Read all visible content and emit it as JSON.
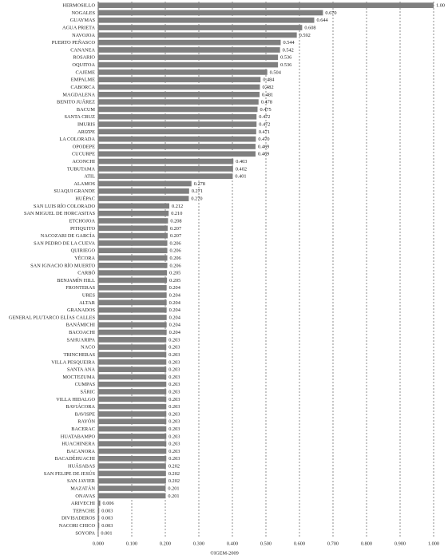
{
  "chart_data": {
    "type": "bar",
    "orientation": "horizontal",
    "color": "#7f7f7f",
    "grid": true,
    "categories": [
      "HERMOSILLO",
      "NOGALES",
      "GUAYMAS",
      "AGUA PRIETA",
      "NAVOJOA",
      "PUERTO PEÑASCO",
      "CANANEA",
      "ROSARIO",
      "OQUITOA",
      "CAJEME",
      "EMPALME",
      "CABORCA",
      "MAGDALENA",
      "BENITO JUÁREZ",
      "BACUM",
      "SANTA CRUZ",
      "IMURIS",
      "ARIZPE",
      "LA COLORADA",
      "OPODEPE",
      "CUCURPE",
      "ACONCHI",
      "TUBUTAMA",
      "ATIL",
      "ALAMOS",
      "SUAQUI GRANDE",
      "HUÉPAC",
      "SAN LUIS RÍO COLORADO",
      "SAN MIGUEL DE HORCASITAS",
      "ETCHOJOA",
      "PITIQUITO",
      "NACOZARI DE GARCÍA",
      "SAN PEDRO DE LA CUEVA",
      "QUIRIEGO",
      "YÉCORA",
      "SAN IGNACIO RÍO MUERTO",
      "CARBÓ",
      "BENJAMÍN HILL",
      "FRONTERAS",
      "URES",
      "ALTAR",
      "GRANADOS",
      "GENERAL PLUTARCO ELÍAS CALLES",
      "BANÁMICHI",
      "BACOACHI",
      "SAHUARIPA",
      "NACO",
      "TRINCHERAS",
      "VILLA PESQUEIRA",
      "SANTA ANA",
      "MOCTEZUMA",
      "CUMPAS",
      "SÁRIC",
      "VILLA HIDALGO",
      "BAVIÁCORA",
      "BAVISPE",
      "RAYÓN",
      "BACERAC",
      "HUATABAMPO",
      "HUACHINERA",
      "BACANORA",
      "BACADÉHUACHI",
      "HUÁSABAS",
      "SAN FELIPE DE JESÚS",
      "SAN JAVIER",
      "MAZATÁN",
      "ONAVAS",
      "ARIVECHI",
      "TEPACHE",
      "DIVISADEROS",
      "NACORI CHICO",
      "SOYOPA"
    ],
    "values": [
      1,
      0.67,
      0.644,
      0.608,
      0.592,
      0.544,
      0.542,
      0.536,
      0.536,
      0.504,
      0.484,
      0.482,
      0.481,
      0.478,
      0.475,
      0.472,
      0.472,
      0.471,
      0.47,
      0.469,
      0.469,
      0.403,
      0.402,
      0.401,
      0.278,
      0.271,
      0.27,
      0.212,
      0.21,
      0.208,
      0.207,
      0.207,
      0.206,
      0.206,
      0.206,
      0.206,
      0.205,
      0.205,
      0.204,
      0.204,
      0.204,
      0.204,
      0.204,
      0.204,
      0.204,
      0.203,
      0.203,
      0.203,
      0.203,
      0.203,
      0.203,
      0.203,
      0.203,
      0.203,
      0.203,
      0.203,
      0.203,
      0.203,
      0.203,
      0.203,
      0.203,
      0.203,
      0.202,
      0.202,
      0.202,
      0.201,
      0.201,
      0.006,
      0.003,
      0.003,
      0.003,
      0.001
    ],
    "value_labels": [
      "1.00",
      "0.670",
      "0.644",
      "0.608",
      "0.592",
      "0.544",
      "0.542",
      "0.536",
      "0.536",
      "0.504",
      "0.484",
      "0.482",
      "0.481",
      "0.478",
      "0.475",
      "0.472",
      "0.472",
      "0.471",
      "0.470",
      "0.469",
      "0.469",
      "0.403",
      "0.402",
      "0.401",
      "0.278",
      "0.271",
      "0.270",
      "0.212",
      "0.210",
      "0.208",
      "0.207",
      "0.207",
      "0.206",
      "0.206",
      "0.206",
      "0.206",
      "0.205",
      "0.205",
      "0.204",
      "0.204",
      "0.204",
      "0.204",
      "0.204",
      "0.204",
      "0.204",
      "0.203",
      "0.203",
      "0.203",
      "0.203",
      "0.203",
      "0.203",
      "0.203",
      "0.203",
      "0.203",
      "0.203",
      "0.203",
      "0.203",
      "0.203",
      "0.203",
      "0.203",
      "0.203",
      "0.203",
      "0.202",
      "0.202",
      "0.202",
      "0.201",
      "0.201",
      "0.006",
      "0.003",
      "0.003",
      "0.003",
      "0.001"
    ],
    "xlim": [
      0,
      1
    ],
    "xticks": [
      {
        "value": 0,
        "label": "0.000"
      },
      {
        "value": 0.1,
        "label": "0.100"
      },
      {
        "value": 0.2,
        "label": "0.200"
      },
      {
        "value": 0.3,
        "label": "0.300"
      },
      {
        "value": 0.4,
        "label": "0.400"
      },
      {
        "value": 0.5,
        "label": "0.500"
      },
      {
        "value": 0.6,
        "label": "0.600"
      },
      {
        "value": 0.7,
        "label": "0.700"
      },
      {
        "value": 0.8,
        "label": "0.800"
      },
      {
        "value": 0.9,
        "label": "0.900"
      },
      {
        "value": 1,
        "label": "1.000"
      }
    ],
    "source": "©IGEM-2009"
  }
}
